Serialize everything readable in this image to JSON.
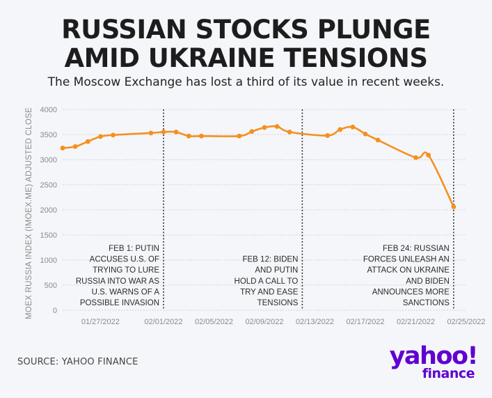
{
  "header": {
    "title_line1": "RUSSIAN STOCKS PLUNGE",
    "title_line2": "AMID UKRAINE TENSIONS",
    "subtitle": "The Moscow Exchange has lost a third of its value in recent weeks."
  },
  "footer": {
    "source": "SOURCE: YAHOO FINANCE",
    "logo_top": "yahoo!",
    "logo_bottom": "finance"
  },
  "colors": {
    "line": "#f5901e",
    "text": "#222222",
    "axis_text": "#8a8a8a",
    "grid": "#cfd3d8",
    "annotation_line": "#333333",
    "logo": "#6001d2"
  },
  "chart_data": {
    "type": "line",
    "title": "RUSSIAN STOCKS PLUNGE AMID UKRAINE TENSIONS",
    "ylabel": "MOEX RUSSIA INDEX (IMOEX.ME) ADJUSTED CLOSE",
    "xlabel": "",
    "ylim": [
      0,
      4000
    ],
    "y_ticks": [
      0,
      500,
      1000,
      1500,
      2000,
      2500,
      3000,
      3500,
      4000
    ],
    "x_range": [
      "2022-01-24",
      "2022-02-25"
    ],
    "x_ticks": [
      {
        "date": "2022-01-27",
        "label": "01/27/2022"
      },
      {
        "date": "2022-02-01",
        "label": "02/01/2022"
      },
      {
        "date": "2022-02-05",
        "label": "02/05/2022"
      },
      {
        "date": "2022-02-09",
        "label": "02/09/2022"
      },
      {
        "date": "2022-02-13",
        "label": "02/13/2022"
      },
      {
        "date": "2022-02-17",
        "label": "02/17/2022"
      },
      {
        "date": "2022-02-21",
        "label": "02/21/2022"
      },
      {
        "date": "2022-02-25",
        "label": "02/25/2022"
      }
    ],
    "grid": "horizontal",
    "series": [
      {
        "points": [
          {
            "x": "2022-01-24",
            "y": 3230
          },
          {
            "x": "2022-01-25",
            "y": 3260
          },
          {
            "x": "2022-01-26",
            "y": 3360
          },
          {
            "x": "2022-01-27",
            "y": 3460
          },
          {
            "x": "2022-01-28",
            "y": 3490
          },
          {
            "x": "2022-01-31",
            "y": 3530
          },
          {
            "x": "2022-02-01",
            "y": 3550
          },
          {
            "x": "2022-02-02",
            "y": 3550
          },
          {
            "x": "2022-02-03",
            "y": 3470
          },
          {
            "x": "2022-02-04",
            "y": 3470
          },
          {
            "x": "2022-02-07",
            "y": 3470
          },
          {
            "x": "2022-02-08",
            "y": 3560
          },
          {
            "x": "2022-02-09",
            "y": 3640
          },
          {
            "x": "2022-02-10",
            "y": 3660
          },
          {
            "x": "2022-02-11",
            "y": 3550
          },
          {
            "x": "2022-02-14",
            "y": 3480
          },
          {
            "x": "2022-02-15",
            "y": 3600
          },
          {
            "x": "2022-02-16",
            "y": 3650
          },
          {
            "x": "2022-02-17",
            "y": 3510
          },
          {
            "x": "2022-02-18",
            "y": 3390
          },
          {
            "x": "2022-02-21",
            "y": 3040
          },
          {
            "x": "2022-02-22",
            "y": 3090
          },
          {
            "x": "2022-02-24",
            "y": 2060
          }
        ]
      }
    ],
    "annotations": [
      {
        "x": "2022-02-01",
        "lines": [
          "FEB 1: PUTIN",
          "ACCUSES U.S. OF",
          "TRYING TO LURE",
          "RUSSIA INTO WAR AS",
          "U.S. WARNS OF A",
          "POSSIBLE INVASION"
        ]
      },
      {
        "x": "2022-02-12",
        "lines": [
          "FEB 12: BIDEN",
          "AND PUTIN",
          "HOLD A CALL TO",
          "TRY AND EASE",
          "TENSIONS"
        ]
      },
      {
        "x": "2022-02-24",
        "lines": [
          "FEB 24: RUSSIAN",
          "FORCES UNLEASH AN",
          "ATTACK ON UKRAINE",
          "AND BIDEN",
          "ANNOUNCES MORE",
          "SANCTIONS"
        ]
      }
    ]
  }
}
